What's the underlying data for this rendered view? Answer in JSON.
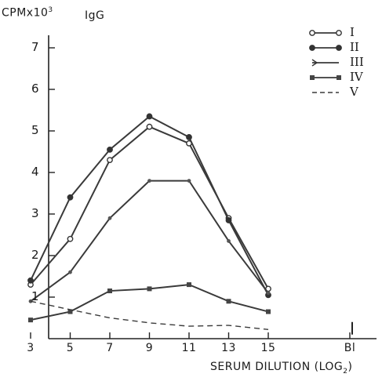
{
  "chart_data": {
    "type": "line",
    "title": "IgG",
    "ylabel_main": "CPMx10",
    "ylabel_sup": "3",
    "xlabel_main": "SERUM DILUTION (LOG",
    "xlabel_sub": "2",
    "xlabel_close": ")",
    "x": [
      3,
      5,
      7,
      9,
      11,
      13,
      15
    ],
    "x_tick_labels": [
      "3",
      "5",
      "7",
      "9",
      "11",
      "13",
      "15",
      "Bl"
    ],
    "ylim": [
      0,
      7.5
    ],
    "y_ticks": [
      1,
      2,
      3,
      4,
      5,
      6,
      7
    ],
    "y_tick_labels": [
      "1",
      "2",
      "3",
      "4",
      "5",
      "6",
      "7"
    ],
    "grid": false,
    "legend_position": "top-right",
    "series": [
      {
        "name": "I",
        "marker": "open-circle",
        "style": "solid",
        "values": [
          1.3,
          2.4,
          4.3,
          5.1,
          4.7,
          2.9,
          1.2
        ]
      },
      {
        "name": "II",
        "marker": "filled-circle",
        "style": "solid",
        "values": [
          1.4,
          3.4,
          4.55,
          5.35,
          4.85,
          2.85,
          1.05
        ]
      },
      {
        "name": "III",
        "marker": "tick",
        "style": "solid",
        "values": [
          0.9,
          1.6,
          2.9,
          3.8,
          3.8,
          2.35,
          1.1
        ]
      },
      {
        "name": "IV",
        "marker": "filled-square",
        "style": "solid",
        "values": [
          0.45,
          0.65,
          1.15,
          1.2,
          1.3,
          0.9,
          0.65
        ]
      },
      {
        "name": "V",
        "marker": "none",
        "style": "dashed",
        "values": [
          0.9,
          0.7,
          0.5,
          0.38,
          0.3,
          0.32,
          0.22
        ]
      }
    ],
    "blank_marker_value": 0.25
  }
}
